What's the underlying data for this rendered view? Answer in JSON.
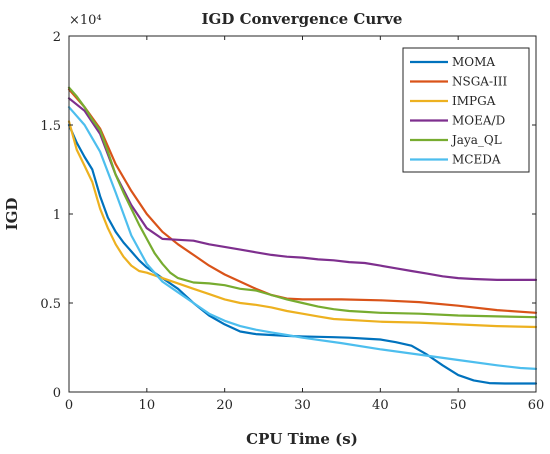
{
  "chart_data": {
    "type": "line",
    "title": "IGD Convergence Curve",
    "xlabel": "CPU Time (s)",
    "ylabel": "IGD",
    "y_exponent_label": "×10⁴",
    "xlim": [
      0,
      60
    ],
    "ylim": [
      0,
      20000
    ],
    "xticks": [
      0,
      10,
      20,
      30,
      40,
      50,
      60
    ],
    "xtick_labels": [
      "0",
      "10",
      "20",
      "30",
      "40",
      "50",
      "60"
    ],
    "yticks": [
      0,
      5000,
      10000,
      15000,
      20000
    ],
    "ytick_labels": [
      "0",
      "0.5",
      "1",
      "1.5",
      "2"
    ],
    "grid": false,
    "legend_position": "top-right",
    "series": [
      {
        "name": "MOMA",
        "color": "#0072BD",
        "x": [
          0,
          1,
          2,
          3,
          4,
          5,
          6,
          7,
          8,
          9,
          10,
          12,
          14,
          16,
          18,
          20,
          22,
          24,
          26,
          28,
          30,
          32,
          34,
          36,
          38,
          40,
          42,
          44,
          46,
          48,
          50,
          52,
          54,
          56,
          58,
          60
        ],
        "y": [
          15000,
          14000,
          13200,
          12500,
          11000,
          9800,
          9000,
          8400,
          7900,
          7400,
          7000,
          6400,
          5800,
          5000,
          4300,
          3800,
          3400,
          3250,
          3200,
          3150,
          3120,
          3100,
          3080,
          3050,
          3000,
          2950,
          2800,
          2600,
          2100,
          1500,
          950,
          650,
          500,
          480,
          480,
          480
        ]
      },
      {
        "name": "NSGA-III",
        "color": "#D95319",
        "x": [
          0,
          2,
          4,
          6,
          8,
          10,
          12,
          14,
          16,
          18,
          20,
          22,
          24,
          26,
          28,
          30,
          35,
          40,
          45,
          50,
          55,
          60
        ],
        "y": [
          17000,
          16000,
          14800,
          12800,
          11300,
          10000,
          9000,
          8300,
          7700,
          7100,
          6600,
          6200,
          5800,
          5450,
          5250,
          5200,
          5200,
          5150,
          5050,
          4850,
          4600,
          4450
        ]
      },
      {
        "name": "IMPGA",
        "color": "#EDB120",
        "x": [
          0,
          1,
          2,
          3,
          4,
          5,
          6,
          7,
          8,
          9,
          10,
          12,
          14,
          16,
          18,
          20,
          22,
          24,
          26,
          28,
          30,
          32,
          34,
          36,
          38,
          40,
          45,
          50,
          55,
          60
        ],
        "y": [
          15200,
          13600,
          12700,
          11800,
          10300,
          9200,
          8300,
          7600,
          7100,
          6800,
          6700,
          6400,
          6100,
          5800,
          5500,
          5200,
          5000,
          4900,
          4750,
          4550,
          4400,
          4250,
          4100,
          4050,
          4000,
          3950,
          3900,
          3800,
          3700,
          3650
        ]
      },
      {
        "name": "MOEA/D",
        "color": "#7E2F8E",
        "x": [
          0,
          2,
          4,
          6,
          8,
          10,
          12,
          14,
          16,
          18,
          20,
          22,
          24,
          26,
          28,
          30,
          32,
          34,
          36,
          38,
          40,
          42,
          44,
          46,
          48,
          50,
          52,
          55,
          60
        ],
        "y": [
          16500,
          15800,
          14500,
          12200,
          10500,
          9200,
          8600,
          8550,
          8500,
          8300,
          8150,
          8000,
          7850,
          7700,
          7600,
          7550,
          7450,
          7400,
          7300,
          7250,
          7100,
          6950,
          6800,
          6650,
          6500,
          6400,
          6350,
          6300,
          6300
        ]
      },
      {
        "name": "Jaya_QL",
        "color": "#77AC30",
        "x": [
          0,
          1,
          2,
          3,
          4,
          5,
          6,
          7,
          8,
          9,
          10,
          11,
          12,
          13,
          14,
          16,
          18,
          20,
          22,
          24,
          26,
          28,
          30,
          32,
          34,
          36,
          38,
          40,
          45,
          50,
          55,
          60
        ],
        "y": [
          17100,
          16600,
          16000,
          15300,
          14700,
          13500,
          12200,
          11200,
          10300,
          9400,
          8600,
          7800,
          7200,
          6700,
          6400,
          6150,
          6100,
          6000,
          5800,
          5700,
          5450,
          5200,
          5000,
          4800,
          4650,
          4550,
          4500,
          4450,
          4400,
          4300,
          4250,
          4200
        ]
      },
      {
        "name": "MCEDA",
        "color": "#4DBEEE",
        "x": [
          0,
          2,
          4,
          6,
          8,
          10,
          12,
          14,
          16,
          18,
          20,
          22,
          24,
          26,
          28,
          30,
          35,
          40,
          45,
          50,
          55,
          58,
          60
        ],
        "y": [
          16000,
          15000,
          13500,
          11200,
          8800,
          7200,
          6200,
          5600,
          5000,
          4400,
          4000,
          3700,
          3500,
          3350,
          3200,
          3050,
          2750,
          2400,
          2100,
          1800,
          1500,
          1350,
          1300
        ]
      }
    ]
  }
}
